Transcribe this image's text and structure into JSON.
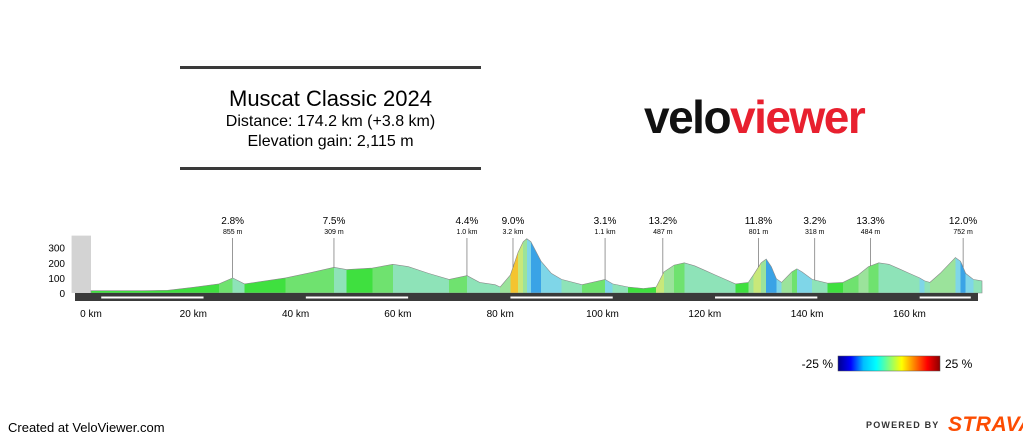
{
  "header": {
    "title": "Muscat Classic 2024",
    "distance": "Distance: 174.2 km (+3.8 km)",
    "elevation": "Elevation gain: 2,115 m"
  },
  "logo": {
    "part1": "velo",
    "part2": "viewer",
    "part1_color": "#111111",
    "part2_color": "#e8202f"
  },
  "footer": {
    "created": "Created at VeloViewer.com",
    "powered_by": "POWERED BY",
    "brand": "STRAVA",
    "brand_color": "#fc4c02"
  },
  "chart_data": {
    "type": "area",
    "x_unit": "km",
    "xlim": [
      -3.8,
      174.2
    ],
    "ylim": [
      0,
      380
    ],
    "y_ticks": [
      0,
      100,
      200,
      300
    ],
    "x_ticks": [
      {
        "value": 0,
        "label": "0 km"
      },
      {
        "value": 20,
        "label": "20 km"
      },
      {
        "value": 40,
        "label": "40 km"
      },
      {
        "value": 60,
        "label": "60 km"
      },
      {
        "value": 80,
        "label": "80 km"
      },
      {
        "value": 100,
        "label": "100 km"
      },
      {
        "value": 120,
        "label": "120 km"
      },
      {
        "value": 140,
        "label": "140 km"
      },
      {
        "value": 160,
        "label": "160 km"
      }
    ],
    "pre_start_segment": {
      "x_start": -3.8,
      "x_end": 0,
      "elevation": 380,
      "color": "#d3d3d3"
    },
    "profile": [
      [
        0,
        15
      ],
      [
        10,
        15
      ],
      [
        15,
        18
      ],
      [
        20,
        38
      ],
      [
        25,
        60
      ],
      [
        27.7,
        100
      ],
      [
        30,
        60
      ],
      [
        33,
        75
      ],
      [
        38,
        100
      ],
      [
        43,
        135
      ],
      [
        47.5,
        170
      ],
      [
        50,
        155
      ],
      [
        55,
        165
      ],
      [
        59,
        190
      ],
      [
        62,
        175
      ],
      [
        66,
        130
      ],
      [
        70,
        90
      ],
      [
        73.5,
        115
      ],
      [
        76,
        70
      ],
      [
        79,
        55
      ],
      [
        80,
        40
      ],
      [
        82,
        120
      ],
      [
        83.5,
        270
      ],
      [
        84.5,
        340
      ],
      [
        85.2,
        360
      ],
      [
        86,
        340
      ],
      [
        88,
        210
      ],
      [
        90,
        130
      ],
      [
        92,
        90
      ],
      [
        96,
        55
      ],
      [
        100.5,
        90
      ],
      [
        102,
        60
      ],
      [
        105,
        40
      ],
      [
        108,
        30
      ],
      [
        110.5,
        40
      ],
      [
        112,
        140
      ],
      [
        114,
        185
      ],
      [
        116,
        200
      ],
      [
        118,
        180
      ],
      [
        120,
        150
      ],
      [
        122,
        120
      ],
      [
        124,
        90
      ],
      [
        126,
        60
      ],
      [
        128.5,
        70
      ],
      [
        129.5,
        120
      ],
      [
        131,
        200
      ],
      [
        132,
        225
      ],
      [
        133,
        175
      ],
      [
        134,
        95
      ],
      [
        135,
        70
      ],
      [
        137,
        140
      ],
      [
        138,
        160
      ],
      [
        139,
        140
      ],
      [
        141,
        90
      ],
      [
        144,
        65
      ],
      [
        147,
        70
      ],
      [
        150,
        120
      ],
      [
        152,
        175
      ],
      [
        154,
        200
      ],
      [
        156,
        190
      ],
      [
        158,
        160
      ],
      [
        160,
        130
      ],
      [
        162,
        100
      ],
      [
        163,
        80
      ],
      [
        164,
        70
      ],
      [
        166,
        130
      ],
      [
        168,
        200
      ],
      [
        169,
        235
      ],
      [
        170,
        210
      ],
      [
        171,
        130
      ],
      [
        172.5,
        90
      ],
      [
        174.2,
        80
      ]
    ],
    "annotations": [
      {
        "x": 27.7,
        "gradient": "2.8%",
        "length": "855 m"
      },
      {
        "x": 47.5,
        "gradient": "7.5%",
        "length": "309 m"
      },
      {
        "x": 73.5,
        "gradient": "4.4%",
        "length": "1.0 km"
      },
      {
        "x": 82.5,
        "gradient": "9.0%",
        "length": "3.2 km"
      },
      {
        "x": 100.5,
        "gradient": "3.1%",
        "length": "1.1 km"
      },
      {
        "x": 111.8,
        "gradient": "13.2%",
        "length": "487 m"
      },
      {
        "x": 130.5,
        "gradient": "11.8%",
        "length": "801 m"
      },
      {
        "x": 141.5,
        "gradient": "3.2%",
        "length": "318 m"
      },
      {
        "x": 152.4,
        "gradient": "13.3%",
        "length": "484 m"
      },
      {
        "x": 170.5,
        "gradient": "12.0%",
        "length": "752 m"
      }
    ],
    "gradient_legend": {
      "min_label": "-25 %",
      "max_label": "25 %",
      "colors": [
        "#00008b",
        "#0000ff",
        "#00bfff",
        "#00ffff",
        "#7fff7f",
        "#ffff00",
        "#ff8000",
        "#ff0000",
        "#8b0000"
      ]
    }
  }
}
